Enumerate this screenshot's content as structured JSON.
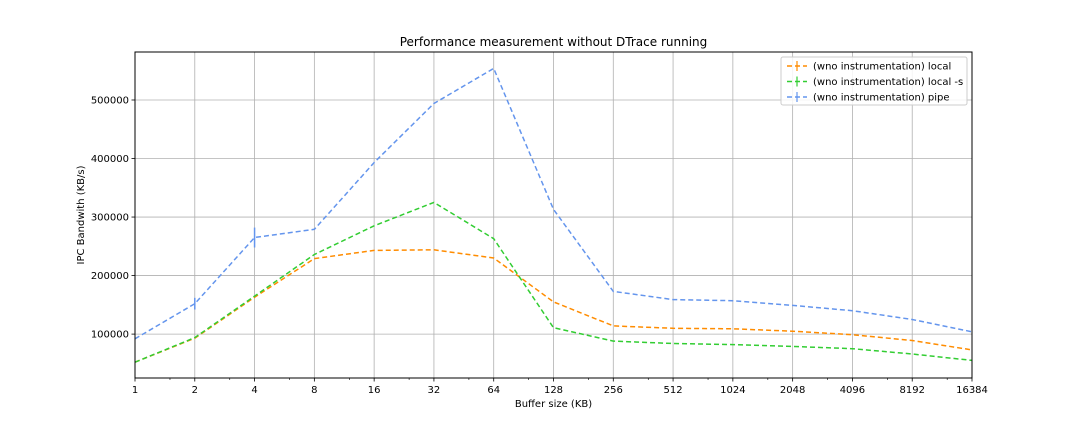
{
  "chart_data": {
    "type": "line",
    "title": "Performance measurement without DTrace running",
    "xlabel": "Buffer size (KB)",
    "ylabel": "IPC Bandwith (KB/s)",
    "x_scale": "log2",
    "x": [
      1,
      2,
      4,
      8,
      16,
      32,
      64,
      128,
      256,
      512,
      1024,
      2048,
      4096,
      8192,
      16384
    ],
    "x_tick_labels": [
      "1",
      "2",
      "4",
      "8",
      "16",
      "32",
      "64",
      "128",
      "256",
      "512",
      "1024",
      "2048",
      "4096",
      "8192",
      "16384"
    ],
    "ylim": [
      25000,
      582000
    ],
    "y_ticks": [
      100000,
      200000,
      300000,
      400000,
      500000
    ],
    "y_tick_labels": [
      "100000",
      "200000",
      "300000",
      "400000",
      "500000"
    ],
    "grid": true,
    "legend_position": "top-right",
    "series": [
      {
        "name": "(wno instrumentation) local",
        "color": "#ff8c00",
        "values": [
          52000,
          93000,
          163000,
          229000,
          243000,
          244000,
          230000,
          155000,
          114000,
          110000,
          109000,
          105000,
          99000,
          89000,
          73000
        ]
      },
      {
        "name": "(wno instrumentation) local -s",
        "color": "#32cd32",
        "values": [
          52000,
          94000,
          165000,
          236000,
          285000,
          325000,
          263000,
          111000,
          88000,
          84000,
          82000,
          79000,
          75000,
          66000,
          55000
        ]
      },
      {
        "name": "(wno instrumentation) pipe",
        "color": "#6495ed",
        "values": [
          92000,
          152000,
          265000,
          279000,
          393000,
          494000,
          554000,
          313000,
          173000,
          159000,
          157000,
          149000,
          140000,
          125000,
          104000
        ],
        "error": [
          0,
          10000,
          17000,
          0,
          0,
          0,
          0,
          0,
          0,
          0,
          0,
          0,
          0,
          0,
          0
        ]
      }
    ]
  }
}
